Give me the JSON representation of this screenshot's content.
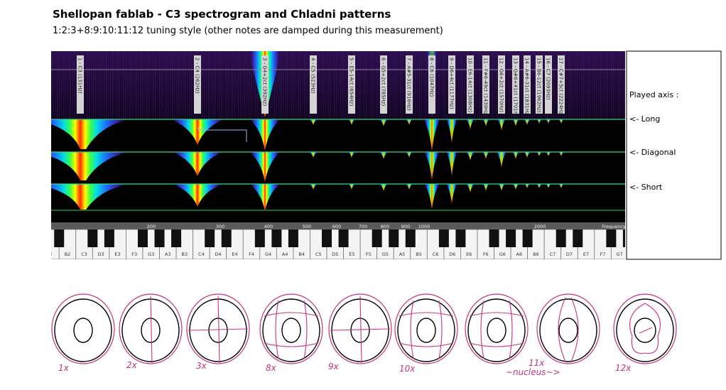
{
  "header": {
    "title": "Shellopan fablab - C3 spectrogram and Chladni patterns",
    "subtitle": "1:2:3+8:9:10:11:12 tuning style (other notes are damped during this measurement)"
  },
  "spectrogram": {
    "note_labels": [
      "1 - C3 (131Hz)",
      "2 - C4 (262Hz)",
      "3 - G4+2ct (392Hz)",
      "4 - C5 (523Hz)",
      "5 - E5-14ct (654Hz)",
      "6 - G5+2ct (785Hz)",
      "7 - A#5-31ct (916Hz)",
      "8 - C6 (1047Hz)",
      "9 - D6+4ct (1177Hz)",
      "10 - E6-14ct (1308Hz)",
      "11 - F#6-49ct (1439Hz)",
      "12 - G6+2ct (1570Hz)",
      "13 - G#6+41ct (1701Hz)",
      "14 - A#6-31ct (1831Hz)",
      "15 - B6-12ct (1962Hz)",
      "16 - C7 (2093Hz)",
      "17 - C#7+5ct (2224Hz)"
    ],
    "frequency_axis": {
      "ticks": [
        "200",
        "300",
        "400",
        "500",
        "600",
        "700",
        "800",
        "900",
        "1000",
        "2000"
      ],
      "label": "Frequency"
    },
    "piano_keys": [
      "2",
      "B2",
      "C3",
      "D3",
      "E3",
      "F3",
      "G3",
      "A3",
      "B3",
      "C4",
      "D4",
      "E4",
      "F4",
      "G4",
      "A4",
      "B4",
      "C5",
      "D5",
      "E5",
      "F5",
      "G5",
      "A5",
      "B5",
      "C6",
      "D6",
      "E6",
      "F6",
      "G6",
      "A6",
      "B6",
      "C7",
      "D7",
      "E7",
      "F7",
      "G7"
    ]
  },
  "side_panel": {
    "title": "Played axis :",
    "rows": [
      "<- Long",
      "<- Diagonal",
      "<- Short"
    ]
  },
  "patterns": {
    "captions": [
      "1x",
      "2x",
      "3x",
      "8x",
      "9x",
      "10x",
      "11x",
      "~nucleus~>",
      "12x"
    ]
  }
}
